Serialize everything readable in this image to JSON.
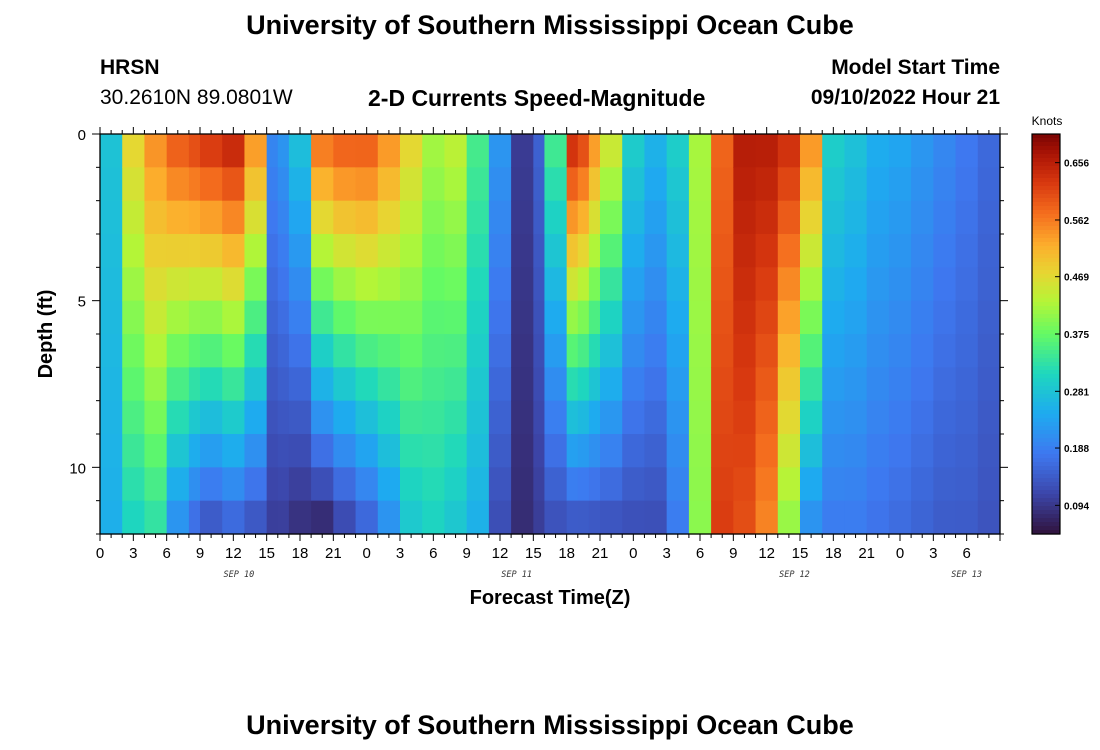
{
  "header": {
    "title": "University of Southern Mississippi Ocean Cube",
    "station": "HRSN",
    "coordinates": "30.2610N  89.0801W",
    "subtitle": "2-D Currents Speed-Magnitude",
    "model_start_label": "Model Start Time",
    "model_start_value": "09/10/2022 Hour 21"
  },
  "footer": {
    "title": "University of Southern Mississippi Ocean Cube"
  },
  "chart_data": {
    "type": "heatmap",
    "title": "2-D Currents Speed-Magnitude",
    "xlabel": "Forecast Time(Z)",
    "ylabel": "Depth (ft)",
    "x_hours_range": [
      0,
      81
    ],
    "y_range": [
      0,
      12
    ],
    "y_inverted": true,
    "x_tick_labels": [
      "0",
      "3",
      "6",
      "9",
      "12",
      "15",
      "18",
      "21",
      "0",
      "3",
      "6",
      "9",
      "12",
      "15",
      "18",
      "21",
      "0",
      "3",
      "6",
      "9",
      "12",
      "15",
      "18",
      "21",
      "0",
      "3",
      "6"
    ],
    "y_ticks": [
      0,
      5,
      10
    ],
    "date_labels": [
      {
        "text": "SEP 10",
        "hour": 12.5
      },
      {
        "text": "SEP 11",
        "hour": 37.5
      },
      {
        "text": "SEP 12",
        "hour": 62.5
      },
      {
        "text": "SEP 13",
        "hour": 78
      }
    ],
    "colorbar": {
      "units": "Knots",
      "min": 0.047,
      "max": 0.703,
      "tick_values": [
        0.656,
        0.562,
        0.469,
        0.375,
        0.281,
        0.188,
        0.094
      ],
      "tick_labels": [
        "0.656",
        "0.562",
        "0.469",
        "0.375",
        "0.281",
        "0.188",
        "0.094"
      ]
    },
    "depth_rows_ft": [
      0.5,
      1.5,
      2.5,
      3.5,
      4.5,
      5.5,
      6.5,
      7.5,
      8.5,
      9.5,
      10.5,
      11.5
    ],
    "time_profile_hours": [
      0,
      2,
      4,
      6,
      8,
      9,
      11,
      13,
      15,
      16,
      17,
      19,
      21,
      23,
      25,
      27,
      29,
      31,
      33,
      35,
      37,
      39,
      40,
      42,
      43,
      44,
      45,
      47,
      49,
      51,
      53,
      55,
      57,
      59,
      61,
      63,
      65,
      67,
      69,
      71,
      73,
      75,
      77,
      79,
      81
    ],
    "surface_speed_knots": [
      0.28,
      0.48,
      0.55,
      0.6,
      0.62,
      0.64,
      0.66,
      0.55,
      0.2,
      0.22,
      0.28,
      0.58,
      0.6,
      0.6,
      0.55,
      0.48,
      0.42,
      0.44,
      0.35,
      0.22,
      0.1,
      0.15,
      0.35,
      0.65,
      0.62,
      0.55,
      0.46,
      0.3,
      0.26,
      0.3,
      0.42,
      0.58,
      0.66,
      0.66,
      0.64,
      0.55,
      0.3,
      0.28,
      0.25,
      0.24,
      0.22,
      0.2,
      0.18,
      0.16,
      0.15
    ],
    "bottom_speed_knots": [
      0.25,
      0.3,
      0.32,
      0.2,
      0.15,
      0.12,
      0.14,
      0.12,
      0.1,
      0.1,
      0.08,
      0.06,
      0.1,
      0.14,
      0.2,
      0.28,
      0.3,
      0.28,
      0.25,
      0.12,
      0.08,
      0.1,
      0.12,
      0.12,
      0.12,
      0.12,
      0.12,
      0.12,
      0.12,
      0.18,
      0.4,
      0.62,
      0.6,
      0.55,
      0.4,
      0.2,
      0.18,
      0.18,
      0.17,
      0.16,
      0.15,
      0.14,
      0.14,
      0.13,
      0.13
    ]
  }
}
